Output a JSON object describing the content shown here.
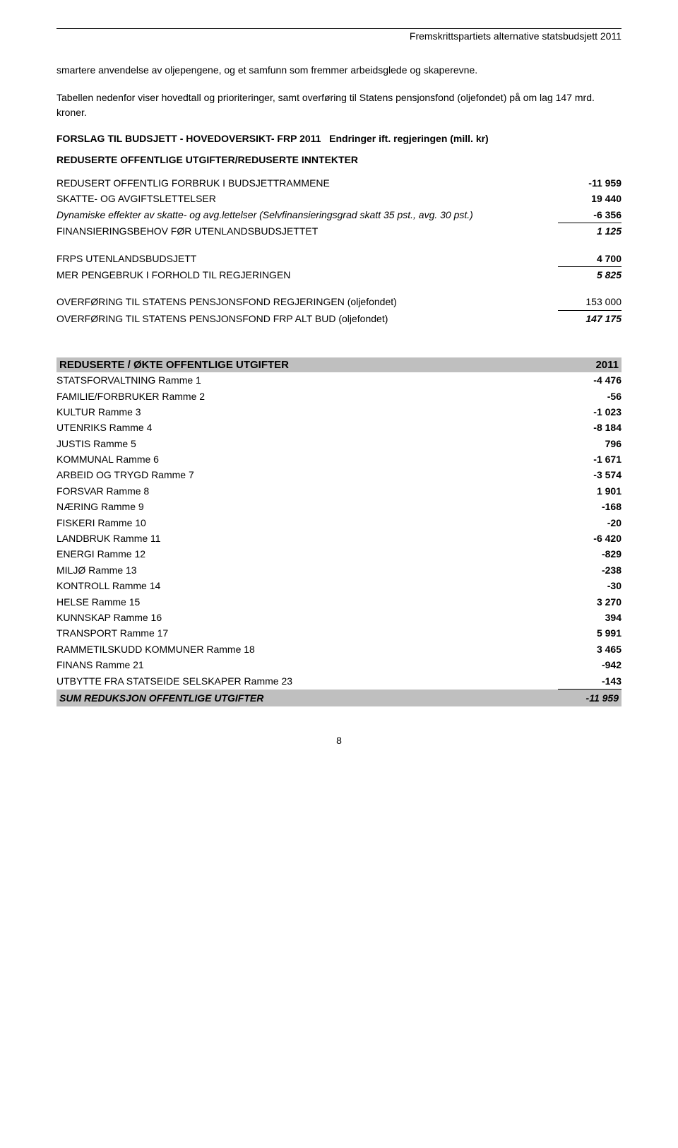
{
  "header": {
    "title": "Fremskrittspartiets alternative statsbudsjett 2011"
  },
  "intro": {
    "p1": "smartere anvendelse av oljepengene, og et samfunn som fremmer arbeidsglede og skaperevne.",
    "p2": "Tabellen nedenfor viser hovedtall og prioriteringer, samt overføring til Statens pensjonsfond (oljefondet) på om lag 147 mrd. kroner."
  },
  "forslag": {
    "title": "FORSLAG TIL BUDSJETT - HOVEDOVERSIKT- FRP 2011",
    "subtitle": "Endringer ift. regjeringen  (mill. kr)"
  },
  "reduserte_inntekter": {
    "title": "REDUSERTE OFFENTLIGE UTGIFTER/REDUSERTE INNTEKTER",
    "rows": [
      {
        "label": "REDUSERT OFFENTLIG FORBRUK I BUDSJETTRAMMENE",
        "value": "-11 959",
        "bold": false,
        "italic": false,
        "underline": false
      },
      {
        "label": "SKATTE- OG AVGIFTSLETTELSER",
        "value": "19 440",
        "bold": false,
        "italic": false,
        "underline": false
      },
      {
        "label": "Dynamiske effekter av skatte- og avg.lettelser (Selvfinansieringsgrad skatt 35 pst., avg. 30 pst.)",
        "value": "-6 356",
        "bold": false,
        "italic": true,
        "underline": true
      },
      {
        "label": "FINANSIERINGSBEHOV FØR UTENLANDSBUDSJETTET",
        "value": "1 125",
        "bold": false,
        "italic": true,
        "boldval": true,
        "underline": false
      }
    ]
  },
  "frps": {
    "rows": [
      {
        "label": "FRPS UTENLANDSBUDSJETT",
        "value": "4 700",
        "underline": true
      },
      {
        "label": "MER PENGEBRUK I FORHOLD TIL REGJERINGEN",
        "value": "5 825",
        "bold": true,
        "italic": true
      }
    ]
  },
  "overforing": {
    "rows": [
      {
        "label": "OVERFØRING TIL STATENS PENSJONSFOND REGJERINGEN (oljefondet)",
        "value": "153 000",
        "underline": true
      },
      {
        "label": "OVERFØRING TIL STATENS PENSJONSFOND FRP ALT BUD (oljefondet)",
        "value": "147 175",
        "bold": true,
        "italic": true
      }
    ]
  },
  "banner": {
    "label": "REDUSERTE / ØKTE OFFENTLIGE UTGIFTER",
    "value": "2011"
  },
  "rammer": [
    {
      "label": "STATSFORVALTNING Ramme 1",
      "value": "-4 476"
    },
    {
      "label": "FAMILIE/FORBRUKER Ramme 2",
      "value": "-56"
    },
    {
      "label": "KULTUR Ramme 3",
      "value": "-1 023"
    },
    {
      "label": "UTENRIKS Ramme 4",
      "value": "-8 184"
    },
    {
      "label": "JUSTIS Ramme 5",
      "value": "796"
    },
    {
      "label": "KOMMUNAL Ramme 6",
      "value": "-1 671"
    },
    {
      "label": "ARBEID OG TRYGD Ramme 7",
      "value": "-3 574"
    },
    {
      "label": "FORSVAR Ramme 8",
      "value": "1 901"
    },
    {
      "label": "NÆRING Ramme 9",
      "value": "-168"
    },
    {
      "label": "FISKERI Ramme 10",
      "value": "-20"
    },
    {
      "label": "LANDBRUK Ramme 11",
      "value": "-6 420"
    },
    {
      "label": "ENERGI Ramme 12",
      "value": "-829"
    },
    {
      "label": "MILJØ Ramme 13",
      "value": "-238"
    },
    {
      "label": "KONTROLL Ramme 14",
      "value": "-30"
    },
    {
      "label": "HELSE Ramme 15",
      "value": "3 270"
    },
    {
      "label": "KUNNSKAP Ramme 16",
      "value": "394"
    },
    {
      "label": "TRANSPORT Ramme 17",
      "value": "5 991"
    },
    {
      "label": "RAMMETILSKUDD KOMMUNER Ramme 18",
      "value": "3 465"
    },
    {
      "label": "FINANS Ramme 21",
      "value": "-942"
    },
    {
      "label": "UTBYTTE FRA STATSEIDE SELSKAPER Ramme 23",
      "value": "-143"
    }
  ],
  "sum": {
    "label": "SUM REDUKSJON OFFENTLIGE UTGIFTER",
    "value": "-11 959"
  },
  "page_number": "8"
}
